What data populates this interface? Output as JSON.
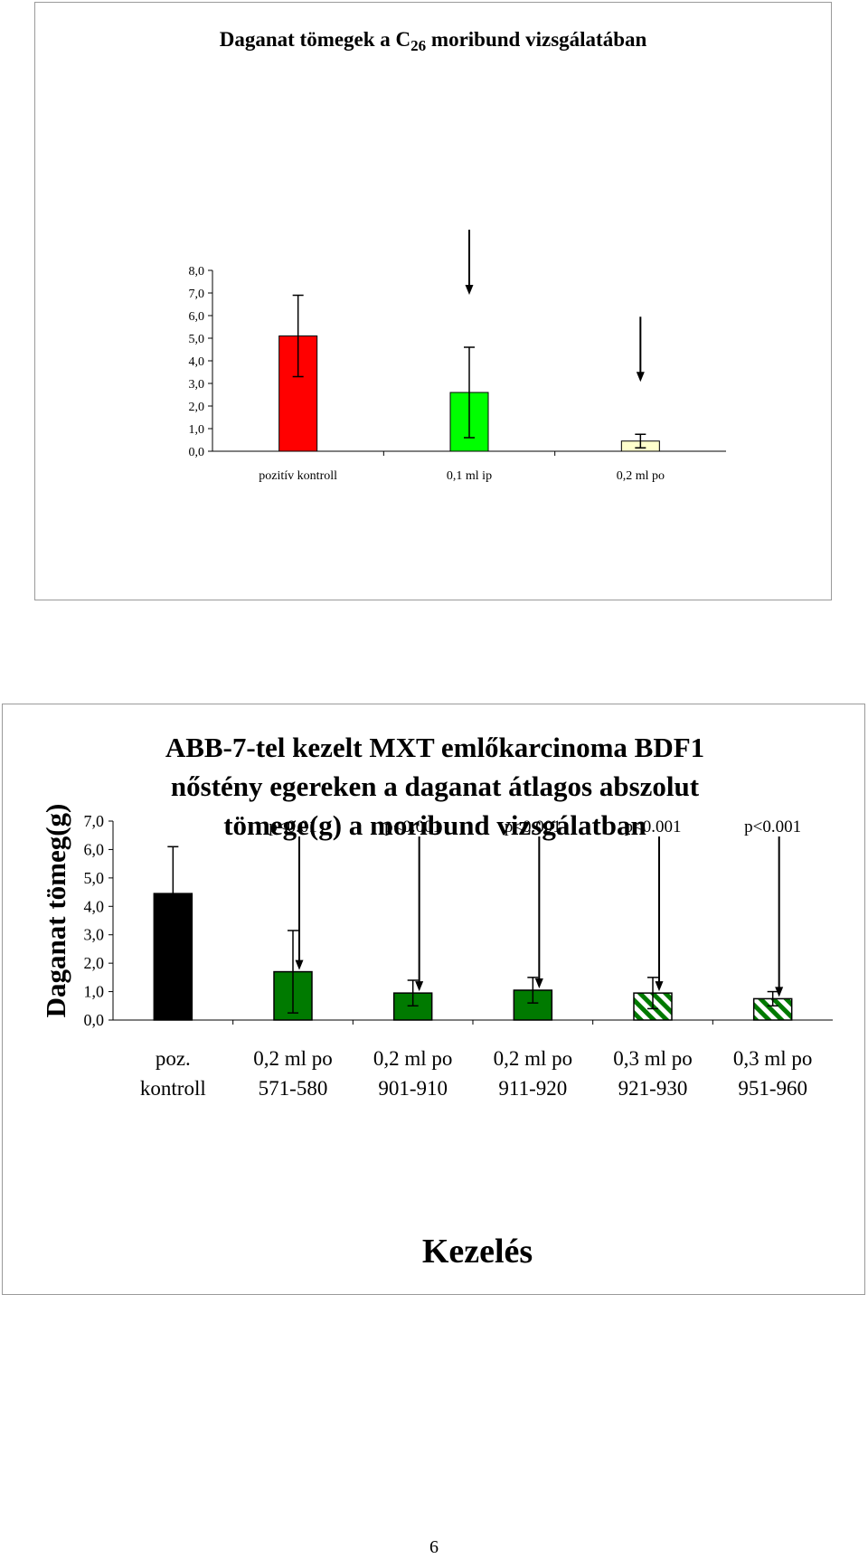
{
  "page_number": "6",
  "colors": {
    "red": "#ff0000",
    "bright_green": "#00ff00",
    "pale_yellow": "#ffffcc",
    "black": "#000000",
    "dark_green": "#007a00",
    "white": "#ffffff"
  },
  "chart_data": [
    {
      "type": "bar",
      "title": "Daganat tömegek a C",
      "title_subscript": "26",
      "title_suffix": " moribund vizsgálatában",
      "xlabel": "",
      "ylabel": "",
      "ylim": [
        0,
        8
      ],
      "y_ticks": [
        "0,0",
        "1,0",
        "2,0",
        "3,0",
        "4,0",
        "5,0",
        "6,0",
        "7,0",
        "8,0"
      ],
      "categories": [
        "pozitív kontroll",
        "0,1 ml ip",
        "0,2 ml po"
      ],
      "values": [
        5.1,
        2.6,
        0.45
      ],
      "error": [
        1.8,
        2.0,
        0.3
      ],
      "fill_colors": [
        "#ff0000",
        "#00ff00",
        "#ffffcc"
      ],
      "arrows": [
        false,
        true,
        true
      ],
      "grid": false,
      "legend": "none"
    },
    {
      "type": "bar",
      "title_lines": [
        "ABB-7-tel kezelt MXT emlőkarcinoma BDF1",
        "nőstény egereken a daganat átlagos abszolut",
        "tömege(g) a moribund vizsgálatban"
      ],
      "xlabel": "Kezelés",
      "ylabel": "Daganat tömeg(g)",
      "ylim": [
        0,
        7
      ],
      "y_ticks": [
        "0,0",
        "1,0",
        "2,0",
        "3,0",
        "4,0",
        "5,0",
        "6,0",
        "7,0"
      ],
      "categories": [
        [
          "poz.",
          "kontroll"
        ],
        [
          "0,2 ml po",
          "571-580"
        ],
        [
          "0,2 ml po",
          "901-910"
        ],
        [
          "0,2 ml po",
          "911-920"
        ],
        [
          "0,3 ml po",
          "921-930"
        ],
        [
          "0,3 ml po",
          "951-960"
        ]
      ],
      "values": [
        4.45,
        1.7,
        0.95,
        1.05,
        0.95,
        0.75
      ],
      "error": [
        1.65,
        1.45,
        0.45,
        0.45,
        0.55,
        0.25
      ],
      "fill": [
        "black",
        "dark-green",
        "dark-green",
        "dark-green",
        "green-white-stripes",
        "green-white-stripes"
      ],
      "annotations": [
        "",
        "p<0.01",
        "p<0.001",
        "p<0.001",
        "p<0.001",
        "p<0.001"
      ],
      "grid": false,
      "legend": "none"
    }
  ]
}
